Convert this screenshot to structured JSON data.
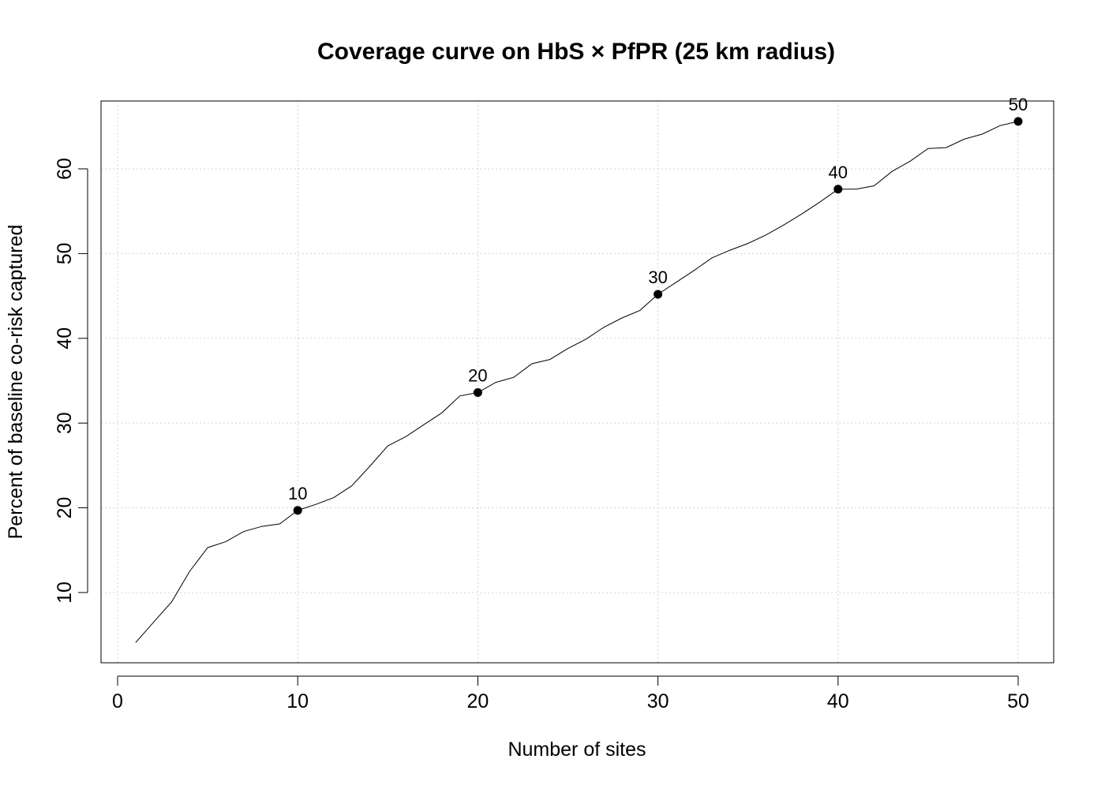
{
  "chart_data": {
    "type": "line",
    "title": "Coverage curve on HbS × PfPR (25 km radius)",
    "xlabel": "Number of sites",
    "ylabel": "Percent of baseline co-risk captured",
    "xlim": [
      0,
      52
    ],
    "ylim": [
      3,
      69
    ],
    "x_ticks": [
      0,
      10,
      20,
      30,
      40,
      50
    ],
    "y_ticks": [
      10,
      20,
      30,
      40,
      50,
      60
    ],
    "grid": true,
    "line_color": "#000000",
    "series": [
      {
        "x": [
          1,
          2,
          3,
          4,
          5,
          6,
          7,
          8,
          9,
          10,
          11,
          12,
          13,
          14,
          15,
          16,
          17,
          18,
          19,
          20,
          21,
          22,
          23,
          24,
          25,
          26,
          27,
          28,
          29,
          30,
          31,
          32,
          33,
          34,
          35,
          36,
          37,
          38,
          39,
          40,
          41,
          42,
          43,
          44,
          45,
          46,
          47,
          48,
          49,
          50
        ],
        "y": [
          4.1,
          6.5,
          8.9,
          12.5,
          15.3,
          16.0,
          17.2,
          17.8,
          18.1,
          19.7,
          20.4,
          21.2,
          22.6,
          24.9,
          27.3,
          28.4,
          29.8,
          31.2,
          33.2,
          33.6,
          34.8,
          35.4,
          37.0,
          37.5,
          38.8,
          39.9,
          41.3,
          42.4,
          43.3,
          45.2,
          46.6,
          48.0,
          49.5,
          50.4,
          51.2,
          52.2,
          53.4,
          54.7,
          56.1,
          57.6,
          57.6,
          58.0,
          59.7,
          60.9,
          62.4,
          62.5,
          63.5,
          64.1,
          65.1,
          65.6
        ]
      }
    ],
    "highlighted_points": [
      {
        "x": 10,
        "y": 19.7,
        "label": "10"
      },
      {
        "x": 20,
        "y": 33.6,
        "label": "20"
      },
      {
        "x": 30,
        "y": 45.2,
        "label": "30"
      },
      {
        "x": 40,
        "y": 57.6,
        "label": "40"
      },
      {
        "x": 50,
        "y": 65.6,
        "label": "50"
      }
    ]
  }
}
